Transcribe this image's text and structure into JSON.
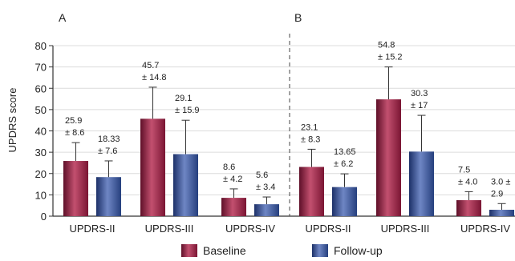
{
  "chart_data": {
    "type": "bar",
    "ylabel": "UPDRS score",
    "ylim": [
      0,
      80
    ],
    "yticks": [
      0,
      10,
      20,
      30,
      40,
      50,
      60,
      70,
      80
    ],
    "grid": true,
    "error_bars": true,
    "legend_position": "bottom",
    "colors": {
      "Baseline": "#8b1a3c",
      "Follow-up": "#2e4a8a"
    },
    "panels": [
      {
        "label": "A",
        "categories": [
          "UPDRS-II",
          "UPDRS-III",
          "UPDRS-IV"
        ],
        "series": [
          {
            "name": "Baseline",
            "values": [
              25.9,
              45.7,
              8.6
            ],
            "errors": [
              8.6,
              14.8,
              4.2
            ],
            "annotations": [
              [
                "25.9",
                "± 8.6"
              ],
              [
                "45.7",
                "± 14.8"
              ],
              [
                "8.6",
                "± 4.2"
              ]
            ]
          },
          {
            "name": "Follow-up",
            "values": [
              18.33,
              29.1,
              5.6
            ],
            "errors": [
              7.6,
              15.9,
              3.4
            ],
            "annotations": [
              [
                "18.33",
                "± 7.6"
              ],
              [
                "29.1",
                "± 15.9"
              ],
              [
                "5.6",
                "± 3.4"
              ]
            ]
          }
        ]
      },
      {
        "label": "B",
        "categories": [
          "UPDRS-II",
          "UPDRS-III",
          "UPDRS-IV"
        ],
        "series": [
          {
            "name": "Baseline",
            "values": [
              23.1,
              54.8,
              7.5
            ],
            "errors": [
              8.3,
              15.2,
              4.0
            ],
            "annotations": [
              [
                "23.1",
                "± 8.3"
              ],
              [
                "54.8",
                "± 15.2"
              ],
              [
                "7.5",
                "± 4.0"
              ]
            ]
          },
          {
            "name": "Follow-up",
            "values": [
              13.65,
              30.3,
              3.0
            ],
            "errors": [
              6.2,
              17,
              2.9
            ],
            "annotations": [
              [
                "13.65",
                "± 6.2"
              ],
              [
                "30.3",
                "± 17"
              ],
              [
                "3.0 ±",
                "2.9"
              ]
            ]
          }
        ]
      }
    ],
    "legend": [
      "Baseline",
      "Follow-up"
    ]
  }
}
